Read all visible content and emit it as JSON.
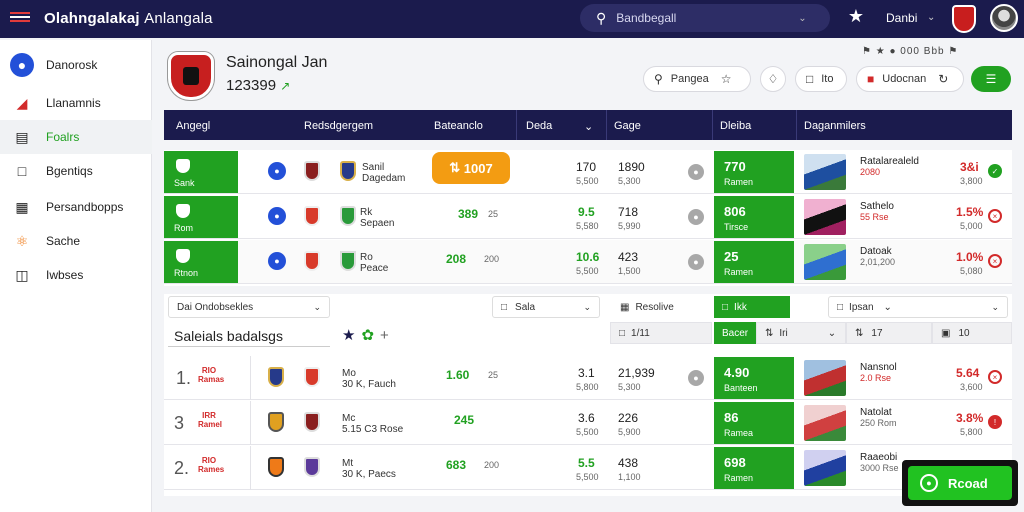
{
  "topbar": {
    "brand": "Olahngalakaj",
    "brand_sub": "Anlangala",
    "search_placeholder": "Bandbegall",
    "user": "Danbi"
  },
  "sidebar": {
    "items": [
      {
        "label": "Danorosk",
        "icon": "dashboard-icon"
      },
      {
        "label": "Llanamnis",
        "icon": "chart-icon"
      },
      {
        "label": "Foalrs",
        "icon": "book-icon"
      },
      {
        "label": "Bgentiqs",
        "icon": "document-icon"
      },
      {
        "label": "Persandbopps",
        "icon": "calendar-icon"
      },
      {
        "label": "Sache",
        "icon": "trophy-icon"
      },
      {
        "label": "Iwbses",
        "icon": "folder-icon"
      }
    ]
  },
  "team": {
    "name": "Sainongal Jan",
    "score": "123399",
    "score_trend": "↗"
  },
  "actions": {
    "topright_icons": "⚑ ★ ● 000 Bbb ⚑",
    "pangea_label": "Pangea",
    "ito_label": "Ito",
    "udocnan_label": "Udocnan"
  },
  "table_head": [
    "Angegl",
    "Redsdgergem",
    "Bateanclo",
    "Deda",
    "Gage",
    "Dleiba",
    "Daganmilers"
  ],
  "rows": [
    {
      "code": "Sank",
      "team": "Sanil",
      "team_sub": "Dagedam",
      "odds": "1007",
      "odds_mark": "⇅",
      "v1": "170",
      "v1_sub": "5,500",
      "v2": "1890",
      "v2_sub": "5,300",
      "block": "770",
      "block_sub": "Ramen",
      "player": "Ratalarealeld",
      "player_sub": "2080",
      "pv": "3&i",
      "pv_sub": "3,800",
      "status": "ok"
    },
    {
      "code": "Rom",
      "team": "Rk",
      "team_sub": "Sepaen",
      "odds": "389",
      "odds_sub": "25",
      "v1": "9.5",
      "v1_sub": "5,580",
      "v2": "718",
      "v2_sub": "5,990",
      "block": "806",
      "block_sub": "Tirsce",
      "player": "Sathelo",
      "player_sub": "55 Rse",
      "pv": "1.5%",
      "pv_sub": "5,000",
      "status": "x"
    },
    {
      "code": "Rtnon",
      "team": "Ro",
      "team_sub": "Peace",
      "odds": "208",
      "odds_sub": "200",
      "v1": "10.6",
      "v1_sub": "5,500",
      "v2": "423",
      "v2_sub": "1,500",
      "block": "25",
      "block_sub": "Ramen",
      "player": "Datoak",
      "player_sub": "2,01,200",
      "pv": "1.0%",
      "pv_sub": "5,080",
      "status": "x"
    }
  ],
  "filters": {
    "select1": "Dai Ondobsekles",
    "select2": "Sala",
    "resolve_label": "Resolive",
    "green_label": "Ikk",
    "select3": "Ipsan",
    "title": "Saleials badalsgs",
    "sub_green": "Bacer",
    "sub_gray1": "Iri",
    "sub_gray2": "10",
    "sub_gray3": "17",
    "sub_gray4": "10",
    "icon_label": "1/11"
  },
  "ranked": [
    {
      "rank": "1.",
      "badge": "RIO Ramas",
      "team": "Mo",
      "team_sub": "30 K, Fauch",
      "odds": "1.60",
      "odds_sub": "25",
      "v1": "3.1",
      "v1_sub": "5,800",
      "v2": "21,939",
      "v2_sub": "5,300",
      "block": "4.90",
      "block_sub": "Banteen",
      "player": "Nansnol",
      "player_sub": "2.0 Rse",
      "pv": "5.64",
      "pv_sub": "3,600"
    },
    {
      "rank": "3",
      "badge": "IRR Ramel",
      "team": "Mc",
      "team_sub": "5.15 C3 Rose",
      "odds": "245",
      "v1": "3.6",
      "v1_sub": "5,500",
      "v2": "226",
      "v2_sub": "5,900",
      "block": "86",
      "block_sub": "Ramea",
      "player": "Natolat",
      "player_sub": "250 Rom",
      "pv": "3.8%",
      "pv_sub": "5,800"
    },
    {
      "rank": "2.",
      "badge": "RIO Rames",
      "team": "Mt",
      "team_sub": "30 K, Paecs",
      "odds": "683",
      "odds_sub": "200",
      "v1": "5.5",
      "v1_sub": "5,500",
      "v2": "438",
      "v2_sub": "1,100",
      "block": "698",
      "block_sub": "Ramen",
      "player": "Raaeobi",
      "player_sub": "3000 Rse",
      "pv": "",
      "pv_sub": ""
    }
  ],
  "cta": {
    "label": "Rcoad"
  },
  "colors": {
    "navy": "#1b1b4d",
    "green": "#21a121",
    "orange": "#f39c12",
    "red": "#d22a2a",
    "blue": "#2350d8"
  }
}
